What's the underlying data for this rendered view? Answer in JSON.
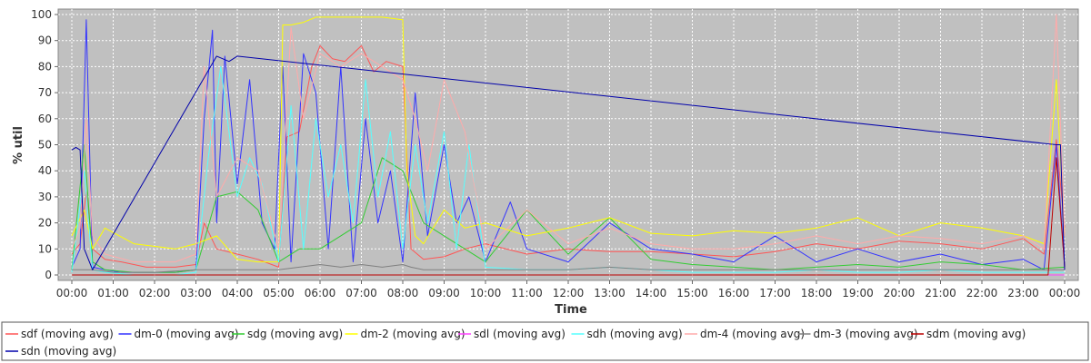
{
  "chart_data": {
    "type": "line",
    "title": "",
    "xlabel": "Time",
    "ylabel": "% util",
    "ylim": [
      0,
      100
    ],
    "xlim": [
      0,
      24
    ],
    "x_ticks": [
      "00:00",
      "01:00",
      "02:00",
      "03:00",
      "04:00",
      "05:00",
      "06:00",
      "07:00",
      "08:00",
      "09:00",
      "10:00",
      "11:00",
      "12:00",
      "13:00",
      "14:00",
      "15:00",
      "16:00",
      "17:00",
      "18:00",
      "19:00",
      "20:00",
      "21:00",
      "22:00",
      "23:00",
      "00:00"
    ],
    "y_ticks": [
      0,
      10,
      20,
      30,
      40,
      50,
      60,
      70,
      80,
      90,
      100
    ],
    "grid": true,
    "legend_position": "bottom",
    "background": "#c0c0c0",
    "series": [
      {
        "name": "sdf (moving avg)",
        "color": "#ff5555",
        "x": [
          0,
          0.2,
          0.35,
          0.5,
          0.8,
          1.2,
          1.8,
          2.5,
          3.0,
          3.2,
          3.5,
          4.0,
          4.5,
          5.0,
          5.2,
          5.5,
          5.8,
          6.0,
          6.3,
          6.6,
          7.0,
          7.3,
          7.6,
          8.0,
          8.2,
          8.5,
          9.0,
          9.5,
          10,
          11,
          12,
          13,
          14,
          15,
          16,
          17,
          18,
          19,
          20,
          21,
          22,
          23,
          23.5,
          23.8,
          24
        ],
        "values": [
          8,
          12,
          32,
          10,
          6,
          5,
          3,
          3,
          4,
          20,
          10,
          8,
          6,
          3,
          53,
          55,
          80,
          88,
          83,
          82,
          88,
          78,
          82,
          80,
          10,
          6,
          7,
          10,
          12,
          8,
          10,
          9,
          9,
          8,
          7,
          9,
          12,
          10,
          13,
          12,
          10,
          14,
          8,
          52,
          18
        ]
      },
      {
        "name": "dm-0 (moving avg)",
        "color": "#3333ff",
        "x": [
          0,
          0.2,
          0.35,
          0.5,
          0.8,
          1.2,
          1.8,
          2.5,
          3.0,
          3.2,
          3.4,
          3.5,
          3.7,
          4.0,
          4.3,
          4.6,
          4.9,
          5.1,
          5.3,
          5.6,
          5.9,
          6.2,
          6.5,
          6.8,
          7.1,
          7.4,
          7.7,
          8.0,
          8.3,
          8.6,
          9.0,
          9.3,
          9.6,
          10,
          10.6,
          11,
          12,
          13,
          14,
          15,
          16,
          17,
          18,
          19,
          20,
          21,
          22,
          23,
          23.5,
          23.8,
          24
        ],
        "values": [
          3,
          10,
          98,
          3,
          2,
          1,
          1,
          1,
          2,
          60,
          94,
          20,
          84,
          35,
          75,
          20,
          10,
          80,
          5,
          85,
          70,
          10,
          80,
          5,
          60,
          20,
          40,
          5,
          70,
          15,
          50,
          20,
          30,
          5,
          28,
          10,
          5,
          20,
          10,
          8,
          5,
          15,
          5,
          10,
          5,
          8,
          4,
          6,
          2,
          50,
          3
        ]
      },
      {
        "name": "sdg (moving avg)",
        "color": "#33cc33",
        "x": [
          0,
          0.3,
          0.5,
          0.8,
          1.5,
          2.5,
          3.0,
          3.5,
          4.0,
          4.5,
          5.0,
          5.5,
          6.0,
          6.5,
          7.0,
          7.5,
          8.0,
          8.5,
          9.0,
          9.5,
          10,
          11,
          12,
          13,
          14,
          15,
          16,
          17,
          18,
          19,
          20,
          21,
          22,
          23,
          24
        ],
        "values": [
          2,
          50,
          5,
          2,
          1,
          1,
          2,
          30,
          32,
          25,
          5,
          10,
          10,
          15,
          20,
          45,
          40,
          20,
          15,
          10,
          5,
          25,
          8,
          22,
          6,
          4,
          3,
          2,
          3,
          4,
          3,
          5,
          4,
          2,
          3
        ]
      },
      {
        "name": "dm-2 (moving avg)",
        "color": "#ffff00",
        "x": [
          0,
          0.3,
          0.5,
          0.8,
          1.5,
          2.5,
          3.0,
          3.5,
          4.0,
          4.5,
          5.0,
          5.1,
          5.3,
          5.6,
          5.9,
          6.2,
          6.6,
          7.0,
          7.5,
          8.0,
          8.1,
          8.3,
          8.5,
          9.0,
          9.5,
          10,
          11,
          12,
          13,
          14,
          15,
          16,
          17,
          18,
          19,
          20,
          21,
          22,
          23,
          23.5,
          23.8,
          24
        ],
        "values": [
          15,
          25,
          10,
          18,
          12,
          10,
          12,
          15,
          6,
          5,
          5,
          96,
          96,
          97,
          99,
          99,
          99,
          99,
          99,
          98,
          40,
          15,
          12,
          25,
          18,
          20,
          15,
          18,
          22,
          16,
          15,
          17,
          16,
          18,
          22,
          15,
          20,
          18,
          15,
          12,
          75,
          15
        ]
      },
      {
        "name": "sdl (moving avg)",
        "color": "#ff44ff",
        "x": [
          0,
          6,
          12,
          18,
          24
        ],
        "values": [
          0,
          0,
          0,
          0,
          0
        ]
      },
      {
        "name": "sdh (moving avg)",
        "color": "#55ffff",
        "x": [
          0,
          0.3,
          0.5,
          0.8,
          1.5,
          2.5,
          3.0,
          3.3,
          3.6,
          4.0,
          4.3,
          4.6,
          5.0,
          5.3,
          5.6,
          5.9,
          6.2,
          6.5,
          6.8,
          7.1,
          7.4,
          7.7,
          8.0,
          8.3,
          8.6,
          9.0,
          9.3,
          9.6,
          10,
          11,
          12,
          13,
          14,
          15,
          16,
          17,
          18,
          19,
          20,
          21,
          22,
          23,
          24
        ],
        "values": [
          1,
          40,
          2,
          1,
          0,
          0,
          1,
          45,
          80,
          30,
          45,
          35,
          5,
          65,
          10,
          60,
          30,
          50,
          20,
          75,
          30,
          55,
          10,
          50,
          20,
          55,
          10,
          50,
          3,
          2,
          2,
          3,
          2,
          1,
          1,
          1,
          2,
          1,
          1,
          2,
          1,
          1,
          1
        ]
      },
      {
        "name": "dm-4 (moving avg)",
        "color": "#ffaaaa",
        "x": [
          0,
          0.2,
          0.35,
          0.5,
          0.8,
          1.5,
          2.5,
          3.0,
          3.2,
          3.5,
          4.0,
          4.5,
          5.0,
          5.3,
          5.6,
          6.0,
          6.5,
          7.0,
          7.5,
          8.0,
          8.3,
          8.6,
          9.0,
          9.5,
          10,
          11,
          12,
          13,
          14,
          15,
          16,
          17,
          18,
          19,
          20,
          21,
          22,
          23,
          23.5,
          23.8,
          24
        ],
        "values": [
          10,
          18,
          60,
          15,
          8,
          5,
          5,
          8,
          80,
          30,
          45,
          40,
          10,
          95,
          60,
          85,
          80,
          85,
          80,
          75,
          60,
          40,
          75,
          55,
          10,
          25,
          12,
          18,
          12,
          10,
          10,
          12,
          15,
          12,
          15,
          14,
          12,
          15,
          10,
          100,
          15
        ]
      },
      {
        "name": "dm-3 (moving avg)",
        "color": "#808080",
        "x": [
          0,
          0.5,
          1,
          2,
          3,
          4,
          5,
          5.5,
          6,
          6.5,
          7,
          7.5,
          8,
          8.2,
          8.5,
          9,
          10,
          11,
          12,
          13,
          14,
          15,
          16,
          17,
          18,
          19,
          20,
          21,
          22,
          23,
          23.8,
          24
        ],
        "values": [
          2,
          2,
          1,
          1,
          2,
          2,
          2,
          3,
          4,
          3,
          4,
          3,
          4,
          3,
          2,
          2,
          2,
          2,
          2,
          3,
          2,
          2,
          2,
          2,
          2,
          2,
          2,
          2,
          2,
          2,
          2,
          2
        ]
      },
      {
        "name": "sdm (moving avg)",
        "color": "#bb0000",
        "x": [
          0,
          6,
          12,
          18,
          23.6,
          23.8,
          24
        ],
        "values": [
          0,
          0,
          0,
          0,
          0,
          45,
          3
        ]
      },
      {
        "name": "sdn (moving avg)",
        "color": "#0000aa",
        "x": [
          0,
          0.1,
          0.2,
          0.3,
          0.5,
          3.5,
          3.8,
          4.0,
          23.8,
          23.9,
          24
        ],
        "values": [
          48,
          49,
          48,
          10,
          2,
          84,
          82,
          84,
          50,
          50,
          2
        ]
      }
    ]
  }
}
